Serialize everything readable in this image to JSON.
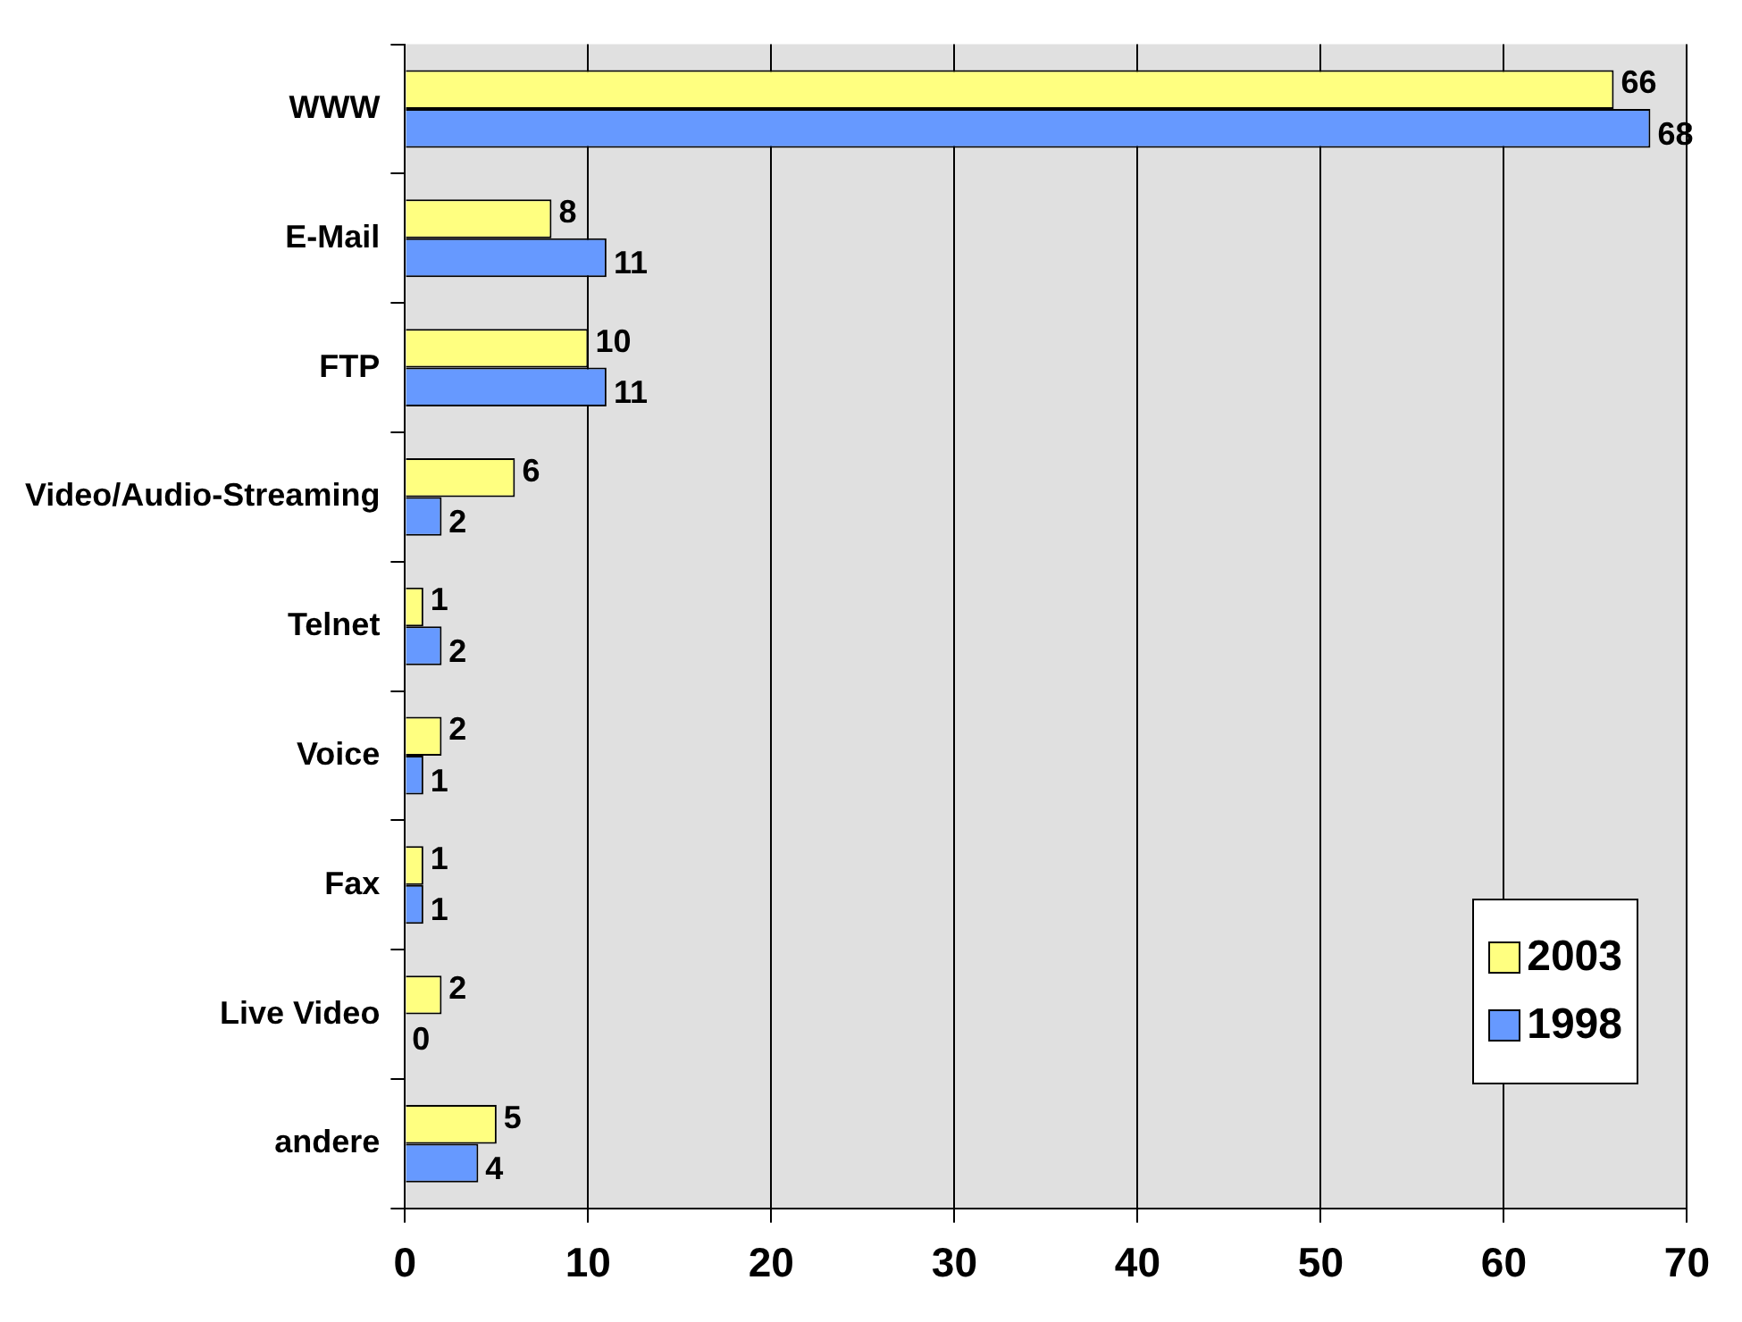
{
  "chart_data": {
    "type": "bar",
    "orientation": "horizontal",
    "categories": [
      "WWW",
      "E-Mail",
      "FTP",
      "Video/Audio-Streaming",
      "Telnet",
      "Voice",
      "Fax",
      "Live Video",
      "andere"
    ],
    "series": [
      {
        "name": "2003",
        "color": "#ffff80",
        "values": [
          66,
          8,
          10,
          6,
          1,
          2,
          1,
          2,
          5
        ]
      },
      {
        "name": "1998",
        "color": "#6699ff",
        "values": [
          68,
          11,
          11,
          2,
          2,
          1,
          1,
          0,
          4
        ]
      }
    ],
    "xlim": [
      0,
      70
    ],
    "xticks": [
      0,
      10,
      20,
      30,
      40,
      50,
      60,
      70
    ],
    "grid": "x",
    "data_labels": true,
    "legend": "bottom right"
  }
}
